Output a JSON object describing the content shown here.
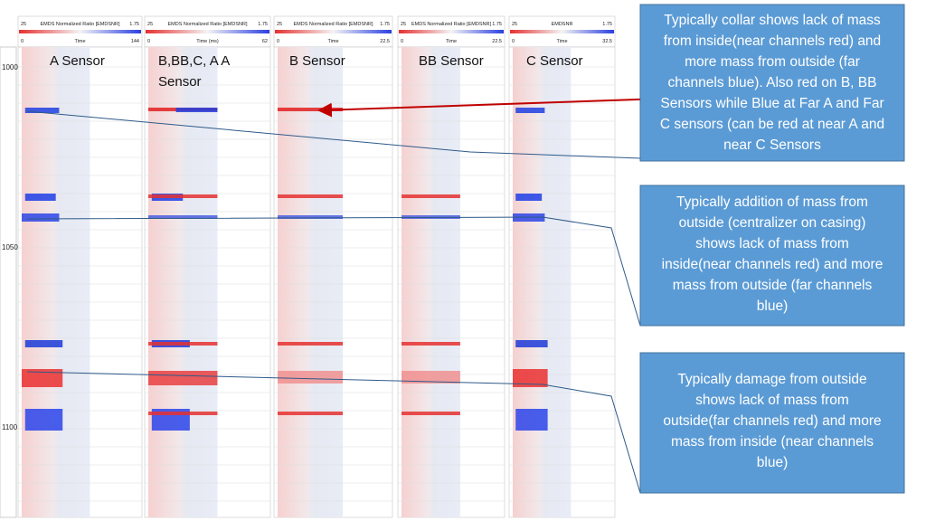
{
  "tracks": [
    {
      "scale_min": 25,
      "title": "EMDS Normalized Ratio [EMDSNR]",
      "scale_max": 1.75,
      "time_min": 0,
      "time_label": "Time",
      "time_max": 144
    },
    {
      "scale_min": 25,
      "title": "EMDS Normalized Ratio [EMDSNR]",
      "scale_max": 1.75,
      "time_min": 0,
      "time_label": "Time (ms)",
      "time_max": 62
    },
    {
      "scale_min": 25,
      "title": "EMDS Normalized Ratio [EMDSNR]",
      "scale_max": 1.75,
      "time_min": 0,
      "time_label": "Time",
      "time_max": 22.5
    },
    {
      "scale_min": 25,
      "title": "EMDS Normalized Ratio [EMDSNR]",
      "scale_max": 1.75,
      "time_min": 0,
      "time_label": "Time",
      "time_max": 22.5
    },
    {
      "scale_min": 25,
      "title": "EMDSNR",
      "scale_max": 1.75,
      "time_min": 0,
      "time_label": "Time",
      "time_max": 32.5
    }
  ],
  "depth_labels": [
    1000,
    1050,
    1100
  ],
  "sensor_labels": [
    {
      "lines": [
        "A Sensor"
      ]
    },
    {
      "lines": [
        "B,BB,C, A A",
        "Sensor"
      ]
    },
    {
      "lines": [
        "B Sensor"
      ]
    },
    {
      "lines": [
        "BB Sensor"
      ]
    },
    {
      "lines": [
        "C Sensor"
      ]
    }
  ],
  "callouts": [
    {
      "lines": [
        "Typically collar shows lack of mass",
        "from inside(near channels red) and",
        "more mass from outside (far",
        "channels blue). Also red on B, BB",
        "Sensors while Blue at Far A and Far",
        "C sensors (can be red at near A and",
        "near C Sensors"
      ]
    },
    {
      "lines": [
        "Typically addition of mass from",
        "outside (centralizer on casing)",
        "shows lack of mass from",
        "inside(near channels red) and more",
        "mass from outside (far channels",
        "blue)"
      ]
    },
    {
      "lines": [
        "Typically damage from outside",
        "shows lack of mass from",
        "outside(far channels red) and more",
        "mass from inside (near channels",
        "blue)"
      ]
    }
  ]
}
